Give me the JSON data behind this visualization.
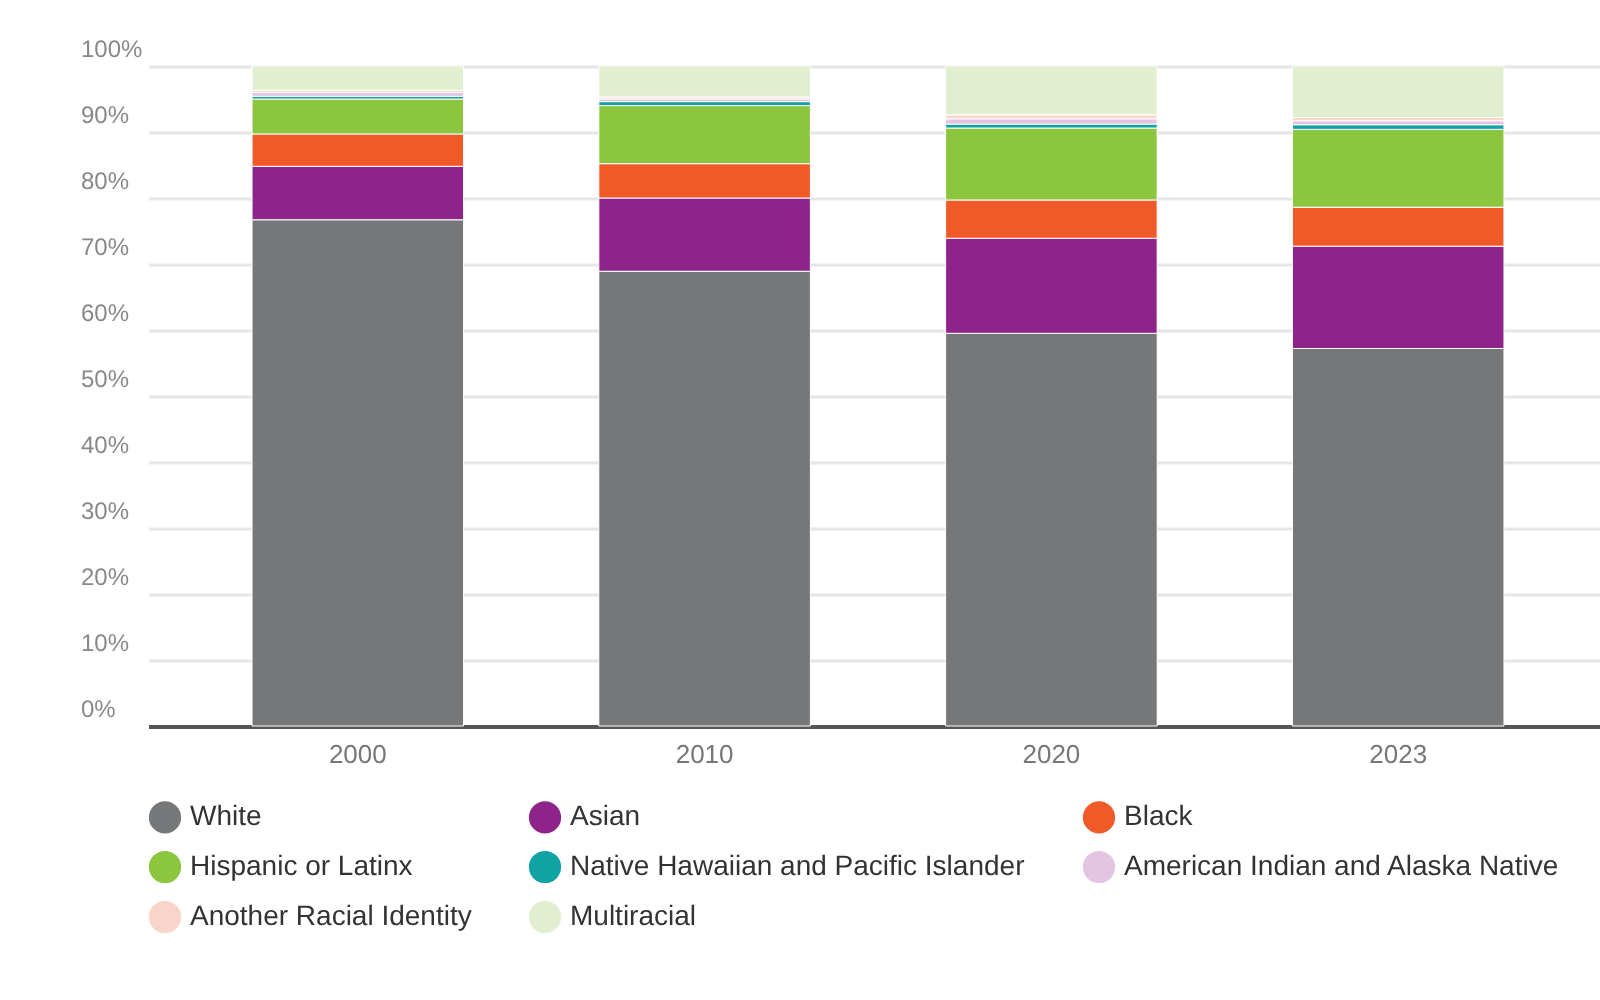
{
  "chart_data": {
    "type": "bar",
    "stacked": true,
    "categories": [
      "2000",
      "2010",
      "2020",
      "2023"
    ],
    "series": [
      {
        "name": "White",
        "color": "#767779",
        "values": [
          76.7,
          68.9,
          59.5,
          57.2
        ]
      },
      {
        "name": "Asian",
        "color": "#8e2489",
        "values": [
          8.1,
          11.1,
          14.4,
          15.5
        ]
      },
      {
        "name": "Black",
        "color": "#f05a28",
        "values": [
          4.9,
          5.2,
          5.8,
          5.9
        ]
      },
      {
        "name": "Hispanic or Latinx",
        "color": "#8cc63f",
        "values": [
          5.3,
          8.8,
          10.9,
          11.8
        ]
      },
      {
        "name": "Native Hawaiian and Pacific Islander",
        "color": "#0fa3a3",
        "values": [
          0.4,
          0.6,
          0.6,
          0.7
        ]
      },
      {
        "name": "American Indian and Alaska Native",
        "color": "#e3c4e3",
        "values": [
          0.6,
          0.4,
          0.8,
          0.6
        ]
      },
      {
        "name": "Another Racial Identity",
        "color": "#f9d4c9",
        "values": [
          0.3,
          0.3,
          0.6,
          0.5
        ]
      },
      {
        "name": "Multiracial",
        "color": "#e1efd0",
        "values": [
          3.7,
          4.7,
          7.4,
          7.8
        ]
      }
    ],
    "ylim": [
      0,
      100
    ],
    "yticks": [
      {
        "value": 0,
        "label": "0%"
      },
      {
        "value": 10,
        "label": "10%"
      },
      {
        "value": 20,
        "label": "20%"
      },
      {
        "value": 30,
        "label": "30%"
      },
      {
        "value": 40,
        "label": "40%"
      },
      {
        "value": 50,
        "label": "50%"
      },
      {
        "value": 60,
        "label": "60%"
      },
      {
        "value": 70,
        "label": "70%"
      },
      {
        "value": 80,
        "label": "80%"
      },
      {
        "value": 90,
        "label": "90%"
      },
      {
        "value": 100,
        "label": "100%"
      }
    ],
    "grid": "y",
    "legend": "bottom"
  }
}
